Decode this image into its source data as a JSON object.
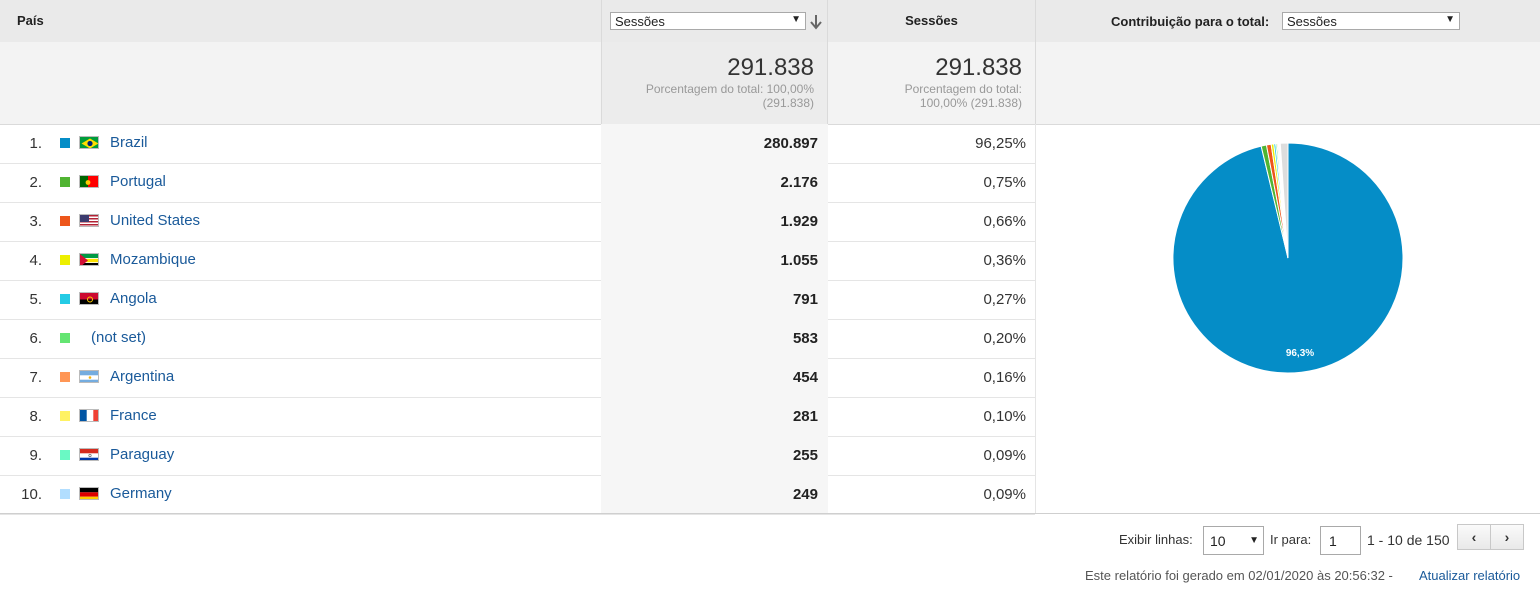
{
  "header": {
    "dimension_label": "País",
    "metric_select_value": "Sessões",
    "sessions_label": "Sessões",
    "contribution_label": "Contribuição para o total:",
    "contribution_select_value": "Sessões"
  },
  "totals": {
    "left_value": "291.838",
    "left_line1": "Porcentagem do total: 100,00%",
    "left_line2": "(291.838)",
    "right_value": "291.838",
    "right_line1": "Porcentagem do total:",
    "right_line2": "100,00% (291.838)"
  },
  "rows": [
    {
      "rank": "1.",
      "country": "Brazil",
      "value": "280.897",
      "pct": "96,25%",
      "color": "#058dc7",
      "flag": "br"
    },
    {
      "rank": "2.",
      "country": "Portugal",
      "value": "2.176",
      "pct": "0,75%",
      "color": "#50b432",
      "flag": "pt"
    },
    {
      "rank": "3.",
      "country": "United States",
      "value": "1.929",
      "pct": "0,66%",
      "color": "#ed561b",
      "flag": "us"
    },
    {
      "rank": "4.",
      "country": "Mozambique",
      "value": "1.055",
      "pct": "0,36%",
      "color": "#edef00",
      "flag": "mz"
    },
    {
      "rank": "5.",
      "country": "Angola",
      "value": "791",
      "pct": "0,27%",
      "color": "#24cbe5",
      "flag": "ao"
    },
    {
      "rank": "6.",
      "country": "(not set)",
      "value": "583",
      "pct": "0,20%",
      "color": "#64e572",
      "flag": ""
    },
    {
      "rank": "7.",
      "country": "Argentina",
      "value": "454",
      "pct": "0,16%",
      "color": "#ff9655",
      "flag": "ar"
    },
    {
      "rank": "8.",
      "country": "France",
      "value": "281",
      "pct": "0,10%",
      "color": "#fff263",
      "flag": "fr"
    },
    {
      "rank": "9.",
      "country": "Paraguay",
      "value": "255",
      "pct": "0,09%",
      "color": "#6af9c4",
      "flag": "py"
    },
    {
      "rank": "10.",
      "country": "Germany",
      "value": "249",
      "pct": "0,09%",
      "color": "#b2deff",
      "flag": "de"
    }
  ],
  "pie": {
    "label": "96,3%",
    "other_color": "#dddddd",
    "other_pct": 0.87
  },
  "footer": {
    "rows_label": "Exibir linhas:",
    "rows_value": "10",
    "goto_label": "Ir para:",
    "goto_value": "1",
    "range_text": "1 - 10 de 150",
    "prev_icon": "‹",
    "next_icon": "›",
    "generated_text": "Este relatório foi gerado em 02/01/2020 às 20:56:32 -",
    "refresh_link": "Atualizar relatório"
  }
}
